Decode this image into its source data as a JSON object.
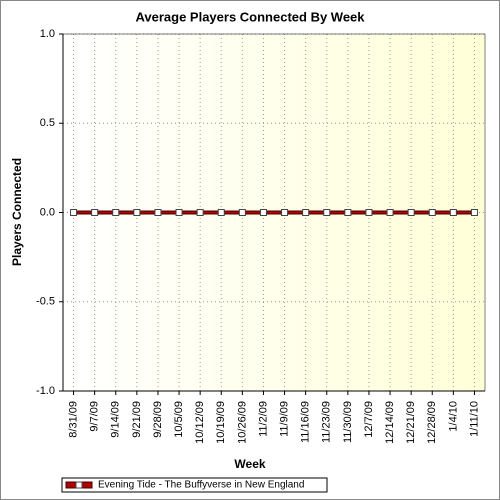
{
  "chart_data": {
    "type": "line",
    "title": "Average Players Connected By Week",
    "x_label": "Week",
    "y_label": "Players Connected",
    "categories": [
      "8/31/09",
      "9/7/09",
      "9/14/09",
      "9/21/09",
      "9/28/09",
      "10/5/09",
      "10/12/09",
      "10/19/09",
      "10/26/09",
      "11/2/09",
      "11/9/09",
      "11/16/09",
      "11/23/09",
      "11/30/09",
      "12/7/09",
      "12/14/09",
      "12/21/09",
      "12/28/09",
      "1/4/10",
      "1/11/10"
    ],
    "series": [
      {
        "name": "Evening Tide - The Buffyverse in New England",
        "color": "#b00000",
        "values": [
          0,
          0,
          0,
          0,
          0,
          0,
          0,
          0,
          0,
          0,
          0,
          0,
          0,
          0,
          0,
          0,
          0,
          0,
          0,
          0
        ]
      }
    ],
    "ylim": [
      -1,
      1
    ],
    "yticks": [
      {
        "value": -1,
        "label": "-1.0"
      },
      {
        "value": -0.5,
        "label": "-0.5"
      },
      {
        "value": 0,
        "label": "0.0"
      },
      {
        "value": 0.5,
        "label": "0.5"
      },
      {
        "value": 1,
        "label": "1.0"
      }
    ],
    "grid": true,
    "legend": "bottom-left"
  }
}
